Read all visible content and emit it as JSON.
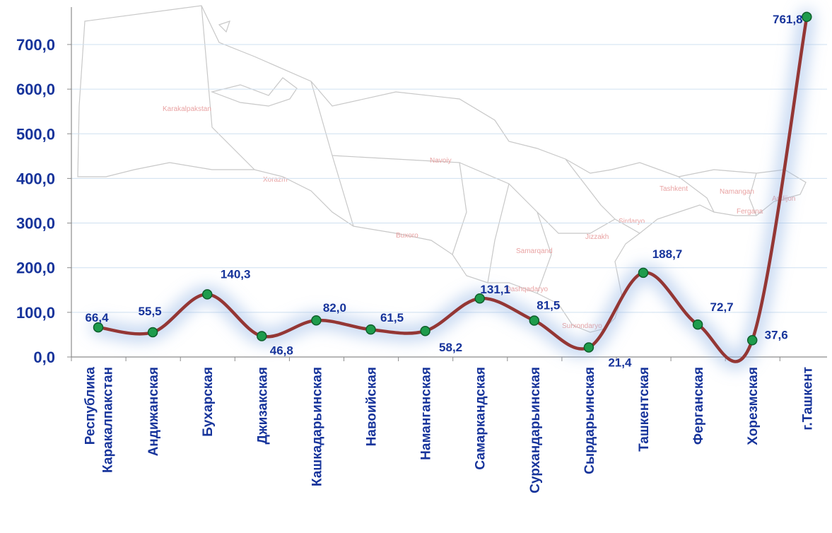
{
  "chart_data": {
    "type": "line",
    "categories": [
      [
        "Республика",
        "Каракалпакстан"
      ],
      [
        "Андижанская"
      ],
      [
        "Бухарская"
      ],
      [
        "Джизакская"
      ],
      [
        "Кашкадарьинская"
      ],
      [
        "Навоийская"
      ],
      [
        "Наманганская"
      ],
      [
        "Самаркандская"
      ],
      [
        "Сурхандарьинская"
      ],
      [
        "Сырдарьинская"
      ],
      [
        "Ташкентская"
      ],
      [
        "Ферганская"
      ],
      [
        "Хорезмская"
      ],
      [
        "г.Ташкент"
      ]
    ],
    "values": [
      66.4,
      55.5,
      140.3,
      46.8,
      82.0,
      61.5,
      58.2,
      131.1,
      81.5,
      21.4,
      188.7,
      72.7,
      37.6,
      761.8
    ],
    "value_labels": [
      "66,4",
      "55,5",
      "140,3",
      "46,8",
      "82,0",
      "61,5",
      "58,2",
      "131,1",
      "81,5",
      "21,4",
      "188,7",
      "72,7",
      "37,6",
      "761,8"
    ],
    "yticks": [
      "0,0",
      "100,0",
      "200,0",
      "300,0",
      "400,0",
      "500,0",
      "600,0",
      "700,0"
    ],
    "ylim": [
      0,
      780
    ],
    "grid": true,
    "colors": {
      "line": "#943634",
      "marker_fill": "#1e9c4c",
      "marker_stroke": "#0d5f2a",
      "text": "#17349b",
      "glow": "#8fb2e6",
      "grid": "#cfe0f0"
    }
  },
  "background_map": {
    "labels": [
      "Karakalpakstan",
      "Xorazm",
      "Navoiy",
      "Buxoro",
      "Samarqand",
      "Qashqadaryo",
      "Surxondaryo",
      "Jizzakh",
      "Sirdaryo",
      "Tashkent",
      "Namangan",
      "Andijon",
      "Fergana"
    ]
  }
}
